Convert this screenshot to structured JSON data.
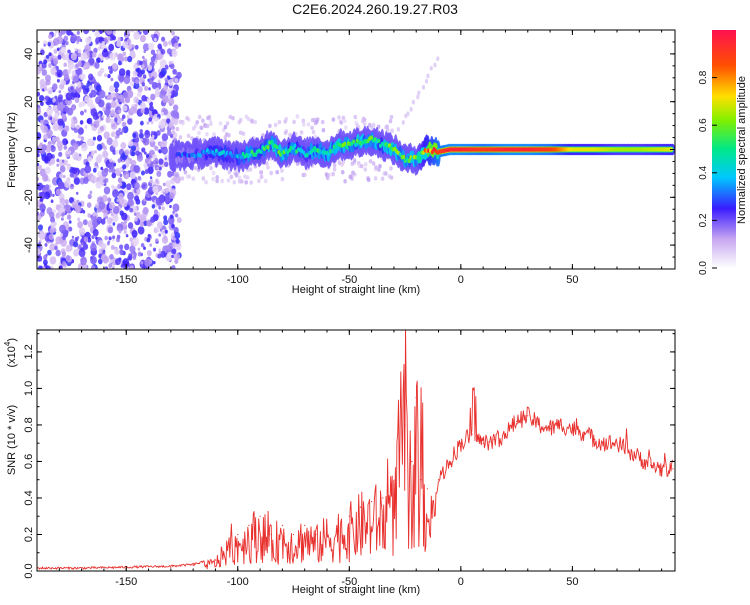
{
  "title": "C2E6.2024.260.19.27.R03",
  "chart_data": [
    {
      "type": "heatmap",
      "xlabel": "Height of straight line (km)",
      "ylabel": "Frequency (Hz)",
      "xlim": [
        -190,
        96
      ],
      "ylim": [
        -50,
        50
      ],
      "xticks": [
        -150,
        -100,
        -50,
        0,
        50
      ],
      "yticks": [
        -40,
        -20,
        0,
        20,
        40
      ],
      "colorbar": {
        "label": "Normalized spectral amplitude",
        "range": [
          0,
          1
        ],
        "ticks": [
          "0.0",
          "0.2",
          "0.4",
          "0.6",
          "0.8"
        ],
        "tick_values": [
          0,
          0.2,
          0.4,
          0.6,
          0.8
        ]
      },
      "ridge": {
        "x": [
          -130,
          -120,
          -110,
          -100,
          -95,
          -90,
          -85,
          -80,
          -75,
          -70,
          -65,
          -60,
          -55,
          -50,
          -45,
          -40,
          -35,
          -30,
          -25,
          -20,
          -15,
          -10,
          -5,
          0,
          10,
          20,
          30,
          40,
          50,
          60,
          70,
          80,
          95
        ],
        "freq": [
          -3,
          -2,
          -1,
          -3,
          -2,
          -1,
          3,
          -2,
          1,
          -2,
          0,
          -2,
          2,
          2,
          3,
          4,
          2,
          0,
          -4,
          -4,
          0,
          -1,
          0,
          0,
          0,
          0,
          0,
          0,
          0,
          0,
          0,
          0,
          0
        ],
        "amplitude": [
          0.25,
          0.3,
          0.35,
          0.35,
          0.45,
          0.45,
          0.55,
          0.5,
          0.45,
          0.4,
          0.45,
          0.45,
          0.5,
          0.55,
          0.5,
          0.5,
          0.5,
          0.55,
          0.5,
          0.55,
          0.75,
          0.9,
          0.95,
          0.95,
          0.9,
          0.95,
          0.95,
          0.9,
          0.7,
          0.7,
          0.65,
          0.65,
          0.7
        ]
      }
    },
    {
      "type": "line",
      "xlabel": "Height of straight line (km)",
      "ylabel": "SNR (10 * v/v)",
      "scale_label": "(x10",
      "scale_exponent": "4",
      "xlim": [
        -190,
        96
      ],
      "ylim": [
        0,
        1.32
      ],
      "xticks": [
        -150,
        -100,
        -50,
        0,
        50
      ],
      "yticks": [
        "0.0",
        "0.2",
        "0.4",
        "0.6",
        "0.8",
        "1.0",
        "1.2"
      ],
      "ytick_values": [
        0,
        0.2,
        0.4,
        0.6,
        0.8,
        1.0,
        1.2
      ],
      "color": "#e8312e",
      "series": [
        {
          "name": "SNR",
          "x": [
            -190,
            -170,
            -150,
            -130,
            -120,
            -110,
            -105,
            -100,
            -95,
            -90,
            -85,
            -80,
            -75,
            -70,
            -65,
            -60,
            -55,
            -50,
            -45,
            -40,
            -35,
            -30,
            -27,
            -25,
            -22,
            -20,
            -18,
            -15,
            -12,
            -10,
            -5,
            0,
            5,
            10,
            15,
            20,
            25,
            30,
            35,
            40,
            45,
            50,
            55,
            60,
            65,
            70,
            75,
            80,
            85,
            90,
            95
          ],
          "y": [
            0.01,
            0.01,
            0.015,
            0.02,
            0.03,
            0.06,
            0.15,
            0.2,
            0.25,
            0.3,
            0.2,
            0.25,
            0.2,
            0.25,
            0.2,
            0.25,
            0.28,
            0.3,
            0.35,
            0.38,
            0.4,
            0.45,
            0.9,
            0.8,
            0.6,
            0.95,
            0.5,
            0.45,
            0.3,
            0.5,
            0.6,
            0.7,
            0.75,
            0.7,
            0.72,
            0.75,
            0.82,
            0.85,
            0.8,
            0.78,
            0.8,
            0.78,
            0.76,
            0.72,
            0.7,
            0.7,
            0.66,
            0.62,
            0.58,
            0.56,
            0.56
          ]
        }
      ]
    }
  ]
}
